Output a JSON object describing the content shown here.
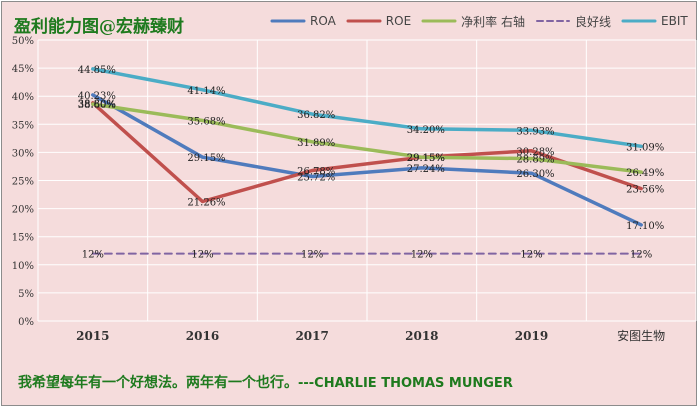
{
  "title": "盈利能力图@宏赫臻财",
  "footer": {
    "quote_cn": "我希望每年有一个好想法。两年有一个也行。",
    "quote_en": "---CHARLIE THOMAS MUNGER"
  },
  "colors": {
    "ROA": "#4f7bbd",
    "ROE": "#c0504d",
    "net_margin": "#9bbb59",
    "benchmark": "#8064a2",
    "EBIT": "#4bacc6",
    "grid": "#ffffff",
    "plot_bg": "#f5dcdc",
    "title": "#1e7a1e"
  },
  "chart_data": {
    "type": "line",
    "categories": [
      "2015",
      "2016",
      "2017",
      "2018",
      "2019",
      "安图生物"
    ],
    "ylim": [
      0,
      50
    ],
    "yticks": [
      "0%",
      "5%",
      "10%",
      "15%",
      "20%",
      "25%",
      "30%",
      "35%",
      "40%",
      "45%",
      "50%"
    ],
    "grid": true,
    "legend_position": "top",
    "series": [
      {
        "key": "ROA",
        "name": "ROA",
        "values": [
          40.23,
          29.15,
          25.72,
          27.24,
          26.3,
          17.1
        ],
        "labels": [
          "40.23%",
          "29.15%",
          "25.72%",
          "27.24%",
          "26.30%",
          "17.10%"
        ],
        "dashed": false
      },
      {
        "key": "ROE",
        "name": "ROE",
        "values": [
          38.8,
          21.26,
          26.78,
          29.15,
          30.28,
          23.56
        ],
        "labels": [
          "38.80%",
          "21.26%",
          "26.78%",
          "29.15%",
          "30.28%",
          "23.56%"
        ],
        "dashed": false
      },
      {
        "key": "net_margin",
        "name": "净利率 右轴",
        "values": [
          38.6,
          35.68,
          31.89,
          29.15,
          28.89,
          26.49
        ],
        "labels": [
          "38.60%",
          "35.68%",
          "31.89%",
          "29.15%",
          "28.89%",
          "26.49%"
        ],
        "dashed": false
      },
      {
        "key": "benchmark",
        "name": "良好线",
        "values": [
          12,
          12,
          12,
          12,
          12,
          12
        ],
        "labels": [
          "12%",
          "12%",
          "12%",
          "12%",
          "12%",
          "12%"
        ],
        "dashed": true
      },
      {
        "key": "EBIT",
        "name": "EBIT",
        "values": [
          44.85,
          41.14,
          36.82,
          34.2,
          33.93,
          31.09
        ],
        "labels": [
          "44.85%",
          "41.14%",
          "36.82%",
          "34.20%",
          "33.93%",
          "31.09%"
        ],
        "dashed": false
      }
    ]
  }
}
